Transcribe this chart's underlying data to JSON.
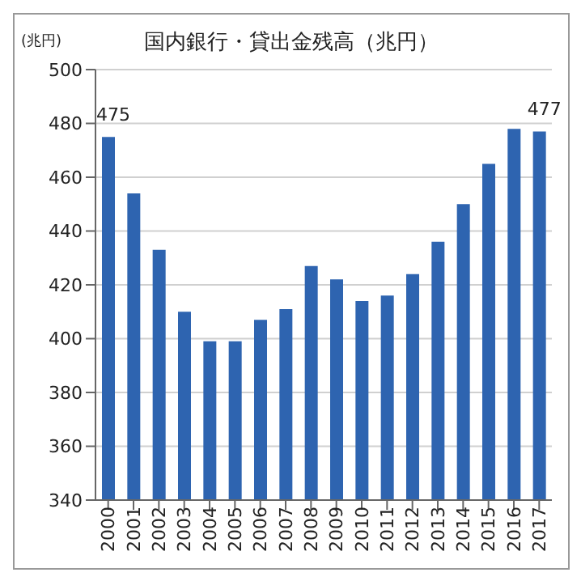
{
  "chart_data": {
    "type": "bar",
    "title": "国内銀行・貸出金残高（兆円）",
    "ylabel": "(兆円)",
    "categories": [
      "2000",
      "2001",
      "2002",
      "2003",
      "2004",
      "2005",
      "2006",
      "2007",
      "2008",
      "2009",
      "2010",
      "2011",
      "2012",
      "2013",
      "2014",
      "2015",
      "2016",
      "2017"
    ],
    "values": [
      475,
      454,
      433,
      410,
      399,
      399,
      407,
      411,
      427,
      422,
      414,
      416,
      424,
      436,
      450,
      465,
      478,
      477
    ],
    "value_labels": [
      "475",
      null,
      null,
      null,
      null,
      null,
      null,
      null,
      null,
      null,
      null,
      null,
      null,
      null,
      null,
      null,
      null,
      "477"
    ],
    "color": "#2e64b0",
    "ylim": [
      340,
      500
    ],
    "yticks": [
      340,
      360,
      380,
      400,
      420,
      440,
      460,
      480,
      500
    ],
    "grid": "y"
  }
}
